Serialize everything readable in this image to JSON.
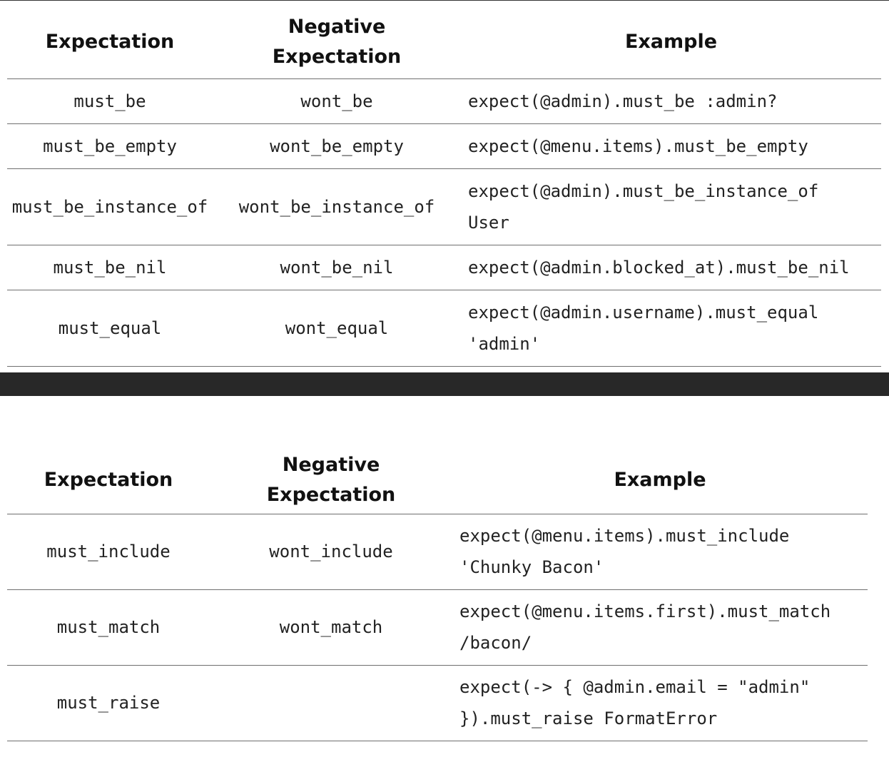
{
  "table1": {
    "headers": [
      "Expectation",
      "Negative Expectation",
      "Example"
    ],
    "rows": [
      {
        "expectation": "must_be",
        "negative": "wont_be",
        "example": "expect(@admin).must_be :admin?"
      },
      {
        "expectation": "must_be_empty",
        "negative": "wont_be_empty",
        "example": "expect(@menu.items).must_be_empty"
      },
      {
        "expectation": "must_be_instance_of",
        "negative": "wont_be_instance_of",
        "example": "expect(@admin).must_be_instance_of User"
      },
      {
        "expectation": "must_be_nil",
        "negative": "wont_be_nil",
        "example": "expect(@admin.blocked_at).must_be_nil"
      },
      {
        "expectation": "must_equal",
        "negative": "wont_equal",
        "example": "expect(@admin.username).must_equal 'admin'"
      }
    ]
  },
  "table2": {
    "headers": [
      "Expectation",
      "Negative Expectation",
      "Example"
    ],
    "rows": [
      {
        "expectation": "must_include",
        "negative": "wont_include",
        "example": "expect(@menu.items).must_include 'Chunky Bacon'"
      },
      {
        "expectation": "must_match",
        "negative": "wont_match",
        "example": "expect(@menu.items.first).must_match /bacon/"
      },
      {
        "expectation": "must_raise",
        "negative": "",
        "example": "expect(-> { @admin.email = \"admin\" }).must_raise FormatError"
      }
    ]
  }
}
